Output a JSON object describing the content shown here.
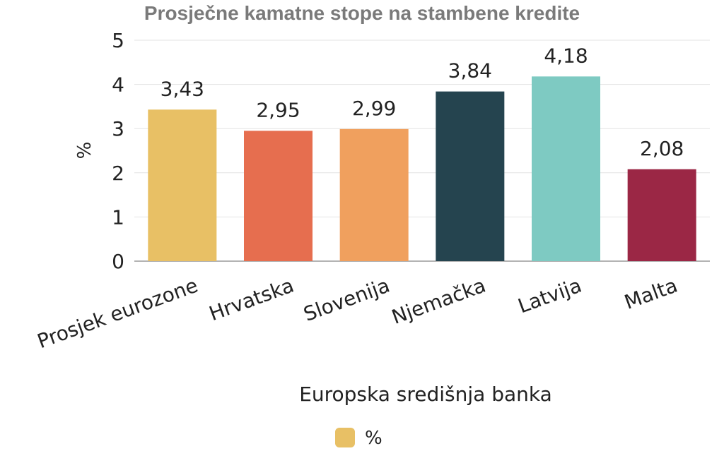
{
  "chart_data": {
    "type": "bar",
    "title": "Prosječne kamatne stope na stambene kredite",
    "ylabel": "%",
    "ylim": [
      0,
      5
    ],
    "yticks": [
      "0",
      "1",
      "2",
      "3",
      "4",
      "5"
    ],
    "grid": true,
    "categories": [
      "Prosjek eurozone",
      "Hrvatska",
      "Slovenija",
      "Njemačka",
      "Latvija",
      "Malta"
    ],
    "values": [
      3.43,
      2.95,
      2.99,
      3.84,
      4.18,
      2.08
    ],
    "value_labels": [
      "3,43",
      "2,95",
      "2,99",
      "3,84",
      "4,18",
      "2,08"
    ],
    "bar_colors": [
      "#e8c065",
      "#e66e4f",
      "#f0a05e",
      "#25444f",
      "#7ecac2",
      "#9b2745"
    ],
    "series": [
      {
        "name": "%",
        "values": [
          3.43,
          2.95,
          2.99,
          3.84,
          4.18,
          2.08
        ]
      }
    ],
    "source": "Europska središnja banka",
    "legend_position": "bottom-center",
    "legend_color": "#e8c065"
  }
}
